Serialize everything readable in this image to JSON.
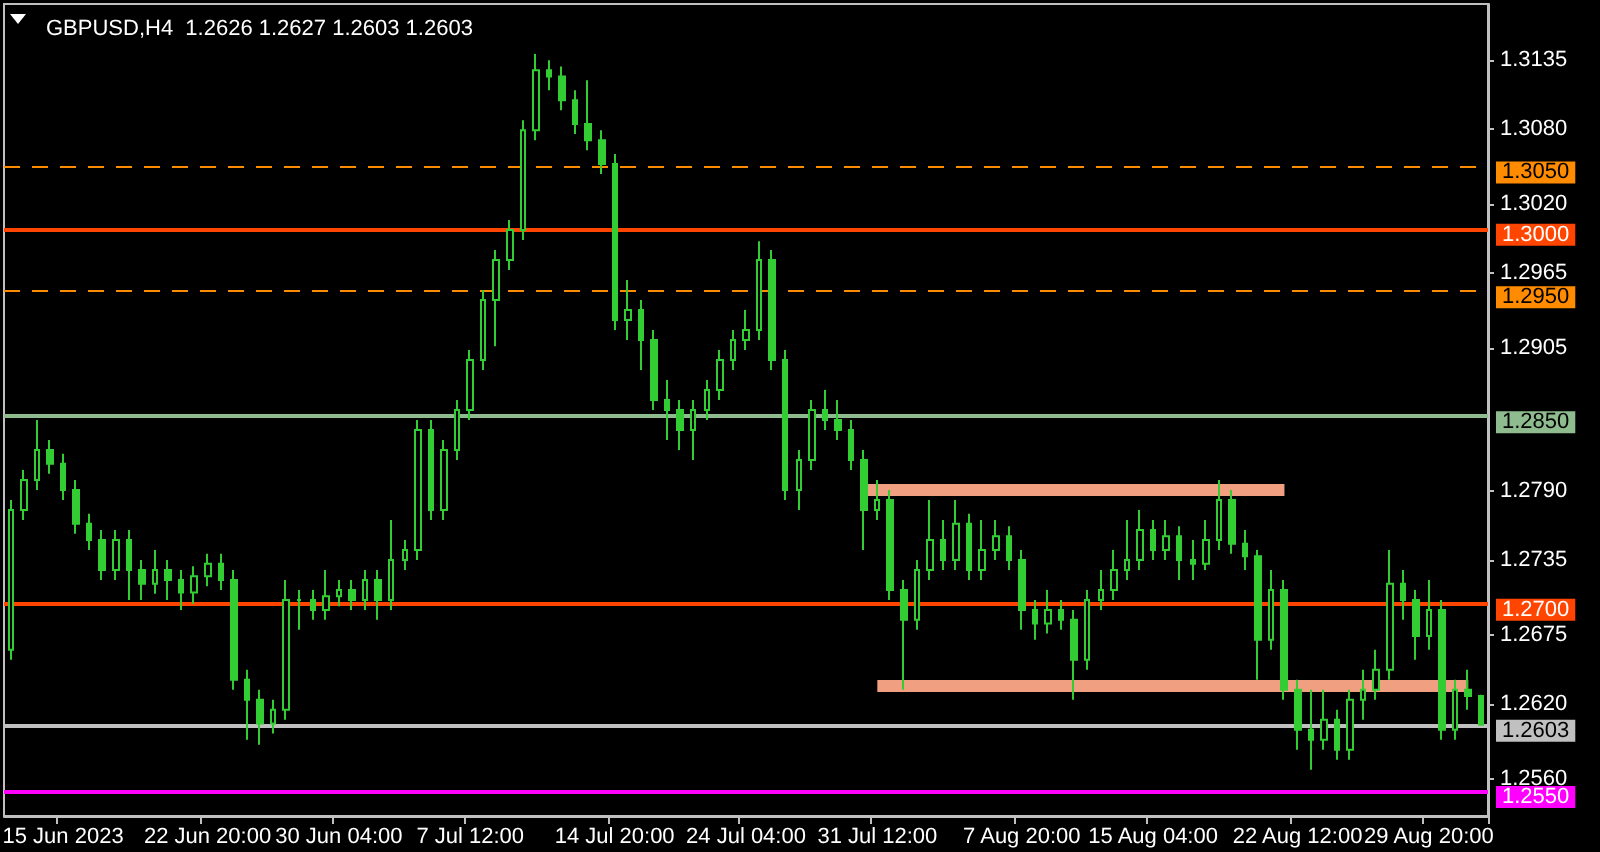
{
  "chart_data": {
    "type": "candlestick",
    "title": "GBPUSD,H4  1.2626 1.2627 1.2603 1.2603",
    "color": "#32cd32",
    "categories": [
      null,
      null,
      null,
      null,
      "15 Jun 2023",
      null,
      null,
      null,
      null,
      null,
      null,
      null,
      null,
      null,
      null,
      "22 Jun 20:00",
      null,
      null,
      null,
      null,
      null,
      null,
      null,
      null,
      null,
      "30 Jun 04:00",
      null,
      null,
      null,
      null,
      null,
      null,
      null,
      null,
      null,
      "7 Jul 12:00",
      null,
      null,
      null,
      null,
      null,
      null,
      null,
      null,
      null,
      null,
      "14 Jul 20:00",
      null,
      null,
      null,
      null,
      null,
      null,
      null,
      null,
      null,
      "24 Jul 04:00",
      null,
      null,
      null,
      null,
      null,
      null,
      null,
      null,
      null,
      "31 Jul 12:00",
      null,
      null,
      null,
      null,
      null,
      null,
      null,
      null,
      null,
      null,
      "7 Aug 20:00",
      null,
      null,
      null,
      null,
      null,
      null,
      null,
      null,
      null,
      "15 Aug 04:00",
      null,
      null,
      null,
      null,
      null,
      null,
      null,
      null,
      null,
      null,
      "22 Aug 12:00",
      null,
      null,
      null,
      null,
      null,
      null,
      null,
      null,
      null,
      "29 Aug 20:00",
      null,
      null,
      null,
      null
    ],
    "ohlc": [
      [
        1.2663,
        1.2783,
        1.2655,
        1.2775
      ],
      [
        1.2775,
        1.2807,
        1.2767,
        1.2799
      ],
      [
        1.2799,
        1.2847,
        1.2791,
        1.2823
      ],
      [
        1.2823,
        1.2831,
        1.2804,
        1.2812
      ],
      [
        1.2812,
        1.282,
        1.2783,
        1.2791
      ],
      [
        1.2791,
        1.2799,
        1.2756,
        1.2764
      ],
      [
        1.2764,
        1.2772,
        1.2743,
        1.2751
      ],
      [
        1.2751,
        1.2759,
        1.2719,
        1.2727
      ],
      [
        1.2727,
        1.2759,
        1.2719,
        1.2751
      ],
      [
        1.2751,
        1.2759,
        1.2703,
        1.2727
      ],
      [
        1.2727,
        1.2735,
        1.2703,
        1.2716
      ],
      [
        1.2716,
        1.2743,
        1.2708,
        1.2727
      ],
      [
        1.2727,
        1.2735,
        1.2703,
        1.2719
      ],
      [
        1.2719,
        1.2727,
        1.2695,
        1.2709
      ],
      [
        1.2709,
        1.273,
        1.27,
        1.2722
      ],
      [
        1.2722,
        1.274,
        1.2714,
        1.2732
      ],
      [
        1.2732,
        1.274,
        1.2711,
        1.2719
      ],
      [
        1.2719,
        1.2727,
        1.2631,
        1.2639
      ],
      [
        1.2639,
        1.2647,
        1.2591,
        1.2623
      ],
      [
        1.2623,
        1.2631,
        1.2587,
        1.2604
      ],
      [
        1.2604,
        1.2623,
        1.2596,
        1.2615
      ],
      [
        1.2615,
        1.2719,
        1.2607,
        1.2703
      ],
      [
        1.2703,
        1.2711,
        1.2679,
        1.2703
      ],
      [
        1.2703,
        1.2711,
        1.2687,
        1.2695
      ],
      [
        1.2695,
        1.2727,
        1.2687,
        1.2706
      ],
      [
        1.2706,
        1.2719,
        1.2698,
        1.2711
      ],
      [
        1.2711,
        1.2719,
        1.2695,
        1.2703
      ],
      [
        1.2703,
        1.2727,
        1.2695,
        1.2719
      ],
      [
        1.2719,
        1.2727,
        1.2687,
        1.2703
      ],
      [
        1.2703,
        1.2767,
        1.2695,
        1.2735
      ],
      [
        1.2735,
        1.2751,
        1.2727,
        1.2743
      ],
      [
        1.2743,
        1.2847,
        1.2735,
        1.2839
      ],
      [
        1.2839,
        1.2847,
        1.2767,
        1.2775
      ],
      [
        1.2775,
        1.2831,
        1.2767,
        1.2823
      ],
      [
        1.2823,
        1.2863,
        1.2815,
        1.2855
      ],
      [
        1.2855,
        1.2903,
        1.2847,
        1.2895
      ],
      [
        1.2895,
        1.2951,
        1.2887,
        1.2943
      ],
      [
        1.2943,
        1.2983,
        1.2906,
        1.2975
      ],
      [
        1.2975,
        1.3007,
        1.2967,
        1.2999
      ],
      [
        1.2999,
        1.3087,
        1.2991,
        1.3079
      ],
      [
        1.3079,
        1.314,
        1.3071,
        1.3127
      ],
      [
        1.3127,
        1.3135,
        1.3111,
        1.3122
      ],
      [
        1.3122,
        1.313,
        1.3095,
        1.3103
      ],
      [
        1.3103,
        1.3111,
        1.3076,
        1.3084
      ],
      [
        1.3084,
        1.3119,
        1.3063,
        1.3071
      ],
      [
        1.3071,
        1.3079,
        1.3044,
        1.3052
      ],
      [
        1.3052,
        1.306,
        1.2919,
        1.2927
      ],
      [
        1.2927,
        1.2959,
        1.2911,
        1.2935
      ],
      [
        1.2935,
        1.2943,
        1.2887,
        1.2911
      ],
      [
        1.2911,
        1.2919,
        1.2855,
        1.2863
      ],
      [
        1.2863,
        1.2879,
        1.2831,
        1.2855
      ],
      [
        1.2855,
        1.2863,
        1.2823,
        1.2839
      ],
      [
        1.2839,
        1.2863,
        1.2815,
        1.2855
      ],
      [
        1.2855,
        1.2879,
        1.2847,
        1.2871
      ],
      [
        1.2871,
        1.2903,
        1.2863,
        1.2895
      ],
      [
        1.2895,
        1.2919,
        1.2887,
        1.2911
      ],
      [
        1.2911,
        1.2935,
        1.2903,
        1.2919
      ],
      [
        1.2919,
        1.299,
        1.2911,
        1.2975
      ],
      [
        1.2975,
        1.2983,
        1.2887,
        1.2895
      ],
      [
        1.2895,
        1.2903,
        1.2783,
        1.2791
      ],
      [
        1.2791,
        1.2823,
        1.2775,
        1.2815
      ],
      [
        1.2815,
        1.2863,
        1.2807,
        1.2855
      ],
      [
        1.2855,
        1.2871,
        1.2839,
        1.2847
      ],
      [
        1.2847,
        1.2863,
        1.2831,
        1.2839
      ],
      [
        1.2839,
        1.2847,
        1.2807,
        1.2815
      ],
      [
        1.2815,
        1.2823,
        1.2743,
        1.2775
      ],
      [
        1.2775,
        1.2799,
        1.2767,
        1.2783
      ],
      [
        1.2783,
        1.2791,
        1.2703,
        1.2711
      ],
      [
        1.2711,
        1.2719,
        1.2631,
        1.2687
      ],
      [
        1.2687,
        1.2735,
        1.2679,
        1.2727
      ],
      [
        1.2727,
        1.2783,
        1.2719,
        1.2751
      ],
      [
        1.2751,
        1.2767,
        1.2727,
        1.2735
      ],
      [
        1.2735,
        1.2783,
        1.2727,
        1.2764
      ],
      [
        1.2764,
        1.2772,
        1.2719,
        1.2727
      ],
      [
        1.2727,
        1.2767,
        1.2719,
        1.2743
      ],
      [
        1.2743,
        1.2767,
        1.2735,
        1.2754
      ],
      [
        1.2754,
        1.2762,
        1.2727,
        1.2735
      ],
      [
        1.2735,
        1.2743,
        1.2679,
        1.2695
      ],
      [
        1.2695,
        1.2703,
        1.2671,
        1.2684
      ],
      [
        1.2684,
        1.2711,
        1.2676,
        1.2695
      ],
      [
        1.2695,
        1.2703,
        1.2679,
        1.2687
      ],
      [
        1.2687,
        1.2695,
        1.2623,
        1.2655
      ],
      [
        1.2655,
        1.2711,
        1.2647,
        1.2703
      ],
      [
        1.2703,
        1.2727,
        1.2695,
        1.2711
      ],
      [
        1.2711,
        1.2743,
        1.2703,
        1.2727
      ],
      [
        1.2727,
        1.2767,
        1.2719,
        1.2735
      ],
      [
        1.2735,
        1.2775,
        1.2727,
        1.2759
      ],
      [
        1.2759,
        1.2767,
        1.2735,
        1.2743
      ],
      [
        1.2743,
        1.2767,
        1.2735,
        1.2754
      ],
      [
        1.2754,
        1.2762,
        1.2719,
        1.2735
      ],
      [
        1.2735,
        1.2751,
        1.2719,
        1.2732
      ],
      [
        1.2732,
        1.2767,
        1.2727,
        1.2751
      ],
      [
        1.2751,
        1.2799,
        1.2743,
        1.2783
      ],
      [
        1.2783,
        1.2791,
        1.274,
        1.2748
      ],
      [
        1.2748,
        1.2759,
        1.2727,
        1.2738
      ],
      [
        1.2738,
        1.2743,
        1.2639,
        1.2671
      ],
      [
        1.2671,
        1.2727,
        1.2663,
        1.2711
      ],
      [
        1.2711,
        1.2719,
        1.2623,
        1.2631
      ],
      [
        1.2631,
        1.2639,
        1.2583,
        1.2599
      ],
      [
        1.2599,
        1.2631,
        1.2567,
        1.2591
      ],
      [
        1.2591,
        1.2631,
        1.2583,
        1.2607
      ],
      [
        1.2607,
        1.2615,
        1.2575,
        1.2583
      ],
      [
        1.2583,
        1.2631,
        1.2575,
        1.2623
      ],
      [
        1.2623,
        1.2647,
        1.2607,
        1.2631
      ],
      [
        1.2631,
        1.2663,
        1.2623,
        1.2647
      ],
      [
        1.2647,
        1.2743,
        1.2639,
        1.2716
      ],
      [
        1.2716,
        1.2727,
        1.2687,
        1.2703
      ],
      [
        1.2703,
        1.2711,
        1.2655,
        1.2674
      ],
      [
        1.2674,
        1.2719,
        1.2663,
        1.2695
      ],
      [
        1.2695,
        1.2703,
        1.2591,
        1.2599
      ],
      [
        1.2599,
        1.2639,
        1.2591,
        1.2631
      ],
      [
        1.2631,
        1.2647,
        1.2615,
        1.2626
      ],
      [
        1.2626,
        1.2627,
        1.2603,
        1.2603
      ]
    ],
    "series": [
      {
        "type": "line",
        "color": "#f0a080",
        "values": [
          null,
          null,
          null,
          null,
          null,
          null,
          null,
          null,
          null,
          null,
          null,
          null,
          null,
          null,
          null,
          null,
          null,
          null,
          null,
          null,
          null,
          null,
          null,
          null,
          null,
          null,
          null,
          null,
          null,
          null,
          null,
          null,
          null,
          null,
          null,
          null,
          null,
          null,
          null,
          null,
          null,
          null,
          null,
          null,
          null,
          null,
          null,
          null,
          null,
          null,
          null,
          null,
          null,
          null,
          null,
          null,
          null,
          null,
          null,
          null,
          null,
          null,
          null,
          null,
          null,
          1.2791,
          1.2791,
          1.2791,
          1.2791,
          1.2791,
          1.2791,
          1.2791,
          1.2791,
          1.2791,
          1.2791,
          1.2791,
          1.2791,
          1.2791,
          1.2791,
          1.2791,
          1.2791,
          1.2791,
          1.2791,
          1.2791,
          1.2791,
          1.2791,
          1.2791,
          1.2791,
          1.2791,
          1.2791,
          1.2791,
          1.2791,
          1.2791,
          1.2791,
          1.2791,
          1.2791,
          1.2791,
          1.2791,
          null,
          null,
          null,
          null,
          null,
          null,
          null,
          null,
          null,
          null,
          null,
          null,
          null,
          null,
          null
        ]
      },
      {
        "type": "line",
        "color": "#f0a080",
        "values": [
          null,
          null,
          null,
          null,
          null,
          null,
          null,
          null,
          null,
          null,
          null,
          null,
          null,
          null,
          null,
          null,
          null,
          null,
          null,
          null,
          null,
          null,
          null,
          null,
          null,
          null,
          null,
          null,
          null,
          null,
          null,
          null,
          null,
          null,
          null,
          null,
          null,
          null,
          null,
          null,
          null,
          null,
          null,
          null,
          null,
          null,
          null,
          null,
          null,
          null,
          null,
          null,
          null,
          null,
          null,
          null,
          null,
          null,
          null,
          null,
          null,
          null,
          null,
          null,
          null,
          null,
          1.2634,
          1.2634,
          1.2634,
          1.2634,
          1.2634,
          1.2634,
          1.2634,
          1.2634,
          1.2634,
          1.2634,
          1.2634,
          1.2634,
          1.2634,
          1.2634,
          1.2634,
          1.2634,
          1.2634,
          1.2634,
          1.2634,
          1.2634,
          1.2634,
          1.2634,
          1.2634,
          1.2634,
          1.2634,
          1.2634,
          1.2634,
          1.2634,
          1.2634,
          1.2634,
          1.2634,
          1.2634,
          1.2634,
          1.2634,
          1.2634,
          1.2634,
          1.2634,
          1.2634,
          1.2634,
          1.2634,
          1.2634,
          1.2634,
          1.2634,
          1.2634,
          1.2634,
          1.2634,
          null
        ]
      }
    ],
    "ylim": [
      1.253,
      1.318
    ],
    "yticks": [
      {
        "value": 1.256,
        "label": "1.2560"
      },
      {
        "value": 1.262,
        "label": "1.2620"
      },
      1.2675,
      1.2735,
      {
        "value": 1.279,
        "label": "1.2790"
      },
      1.2905,
      1.2965,
      {
        "value": 1.302,
        "label": "1.3020"
      },
      {
        "value": 1.308,
        "label": "1.3080"
      },
      1.3135
    ],
    "ref_lines": [
      {
        "axis": "y",
        "value": 1.305,
        "label": "1.3050",
        "color": "#ff8c00",
        "line_style": "dashed"
      },
      {
        "axis": "y",
        "value": 1.3,
        "label": "1.3000",
        "color": "#ff4500",
        "line_style": "solid"
      },
      {
        "axis": "y",
        "value": 1.295,
        "label": "1.2950",
        "color": "#ff8c00",
        "line_style": "dashed"
      },
      {
        "axis": "y",
        "value": 1.285,
        "label": "1.2850",
        "color": "#8fbc8f",
        "line_style": "solid"
      },
      {
        "axis": "y",
        "value": 1.27,
        "label": "1.2700",
        "color": "#ff4500",
        "line_style": "solid"
      },
      {
        "axis": "y",
        "value": 1.2603,
        "label": "1.2603",
        "color": "#c0c0c0",
        "line_style": "solid"
      },
      {
        "axis": "y",
        "value": 1.255,
        "label": "1.2550",
        "color": "#ff00ff",
        "line_style": "solid"
      }
    ],
    "grid": false
  }
}
